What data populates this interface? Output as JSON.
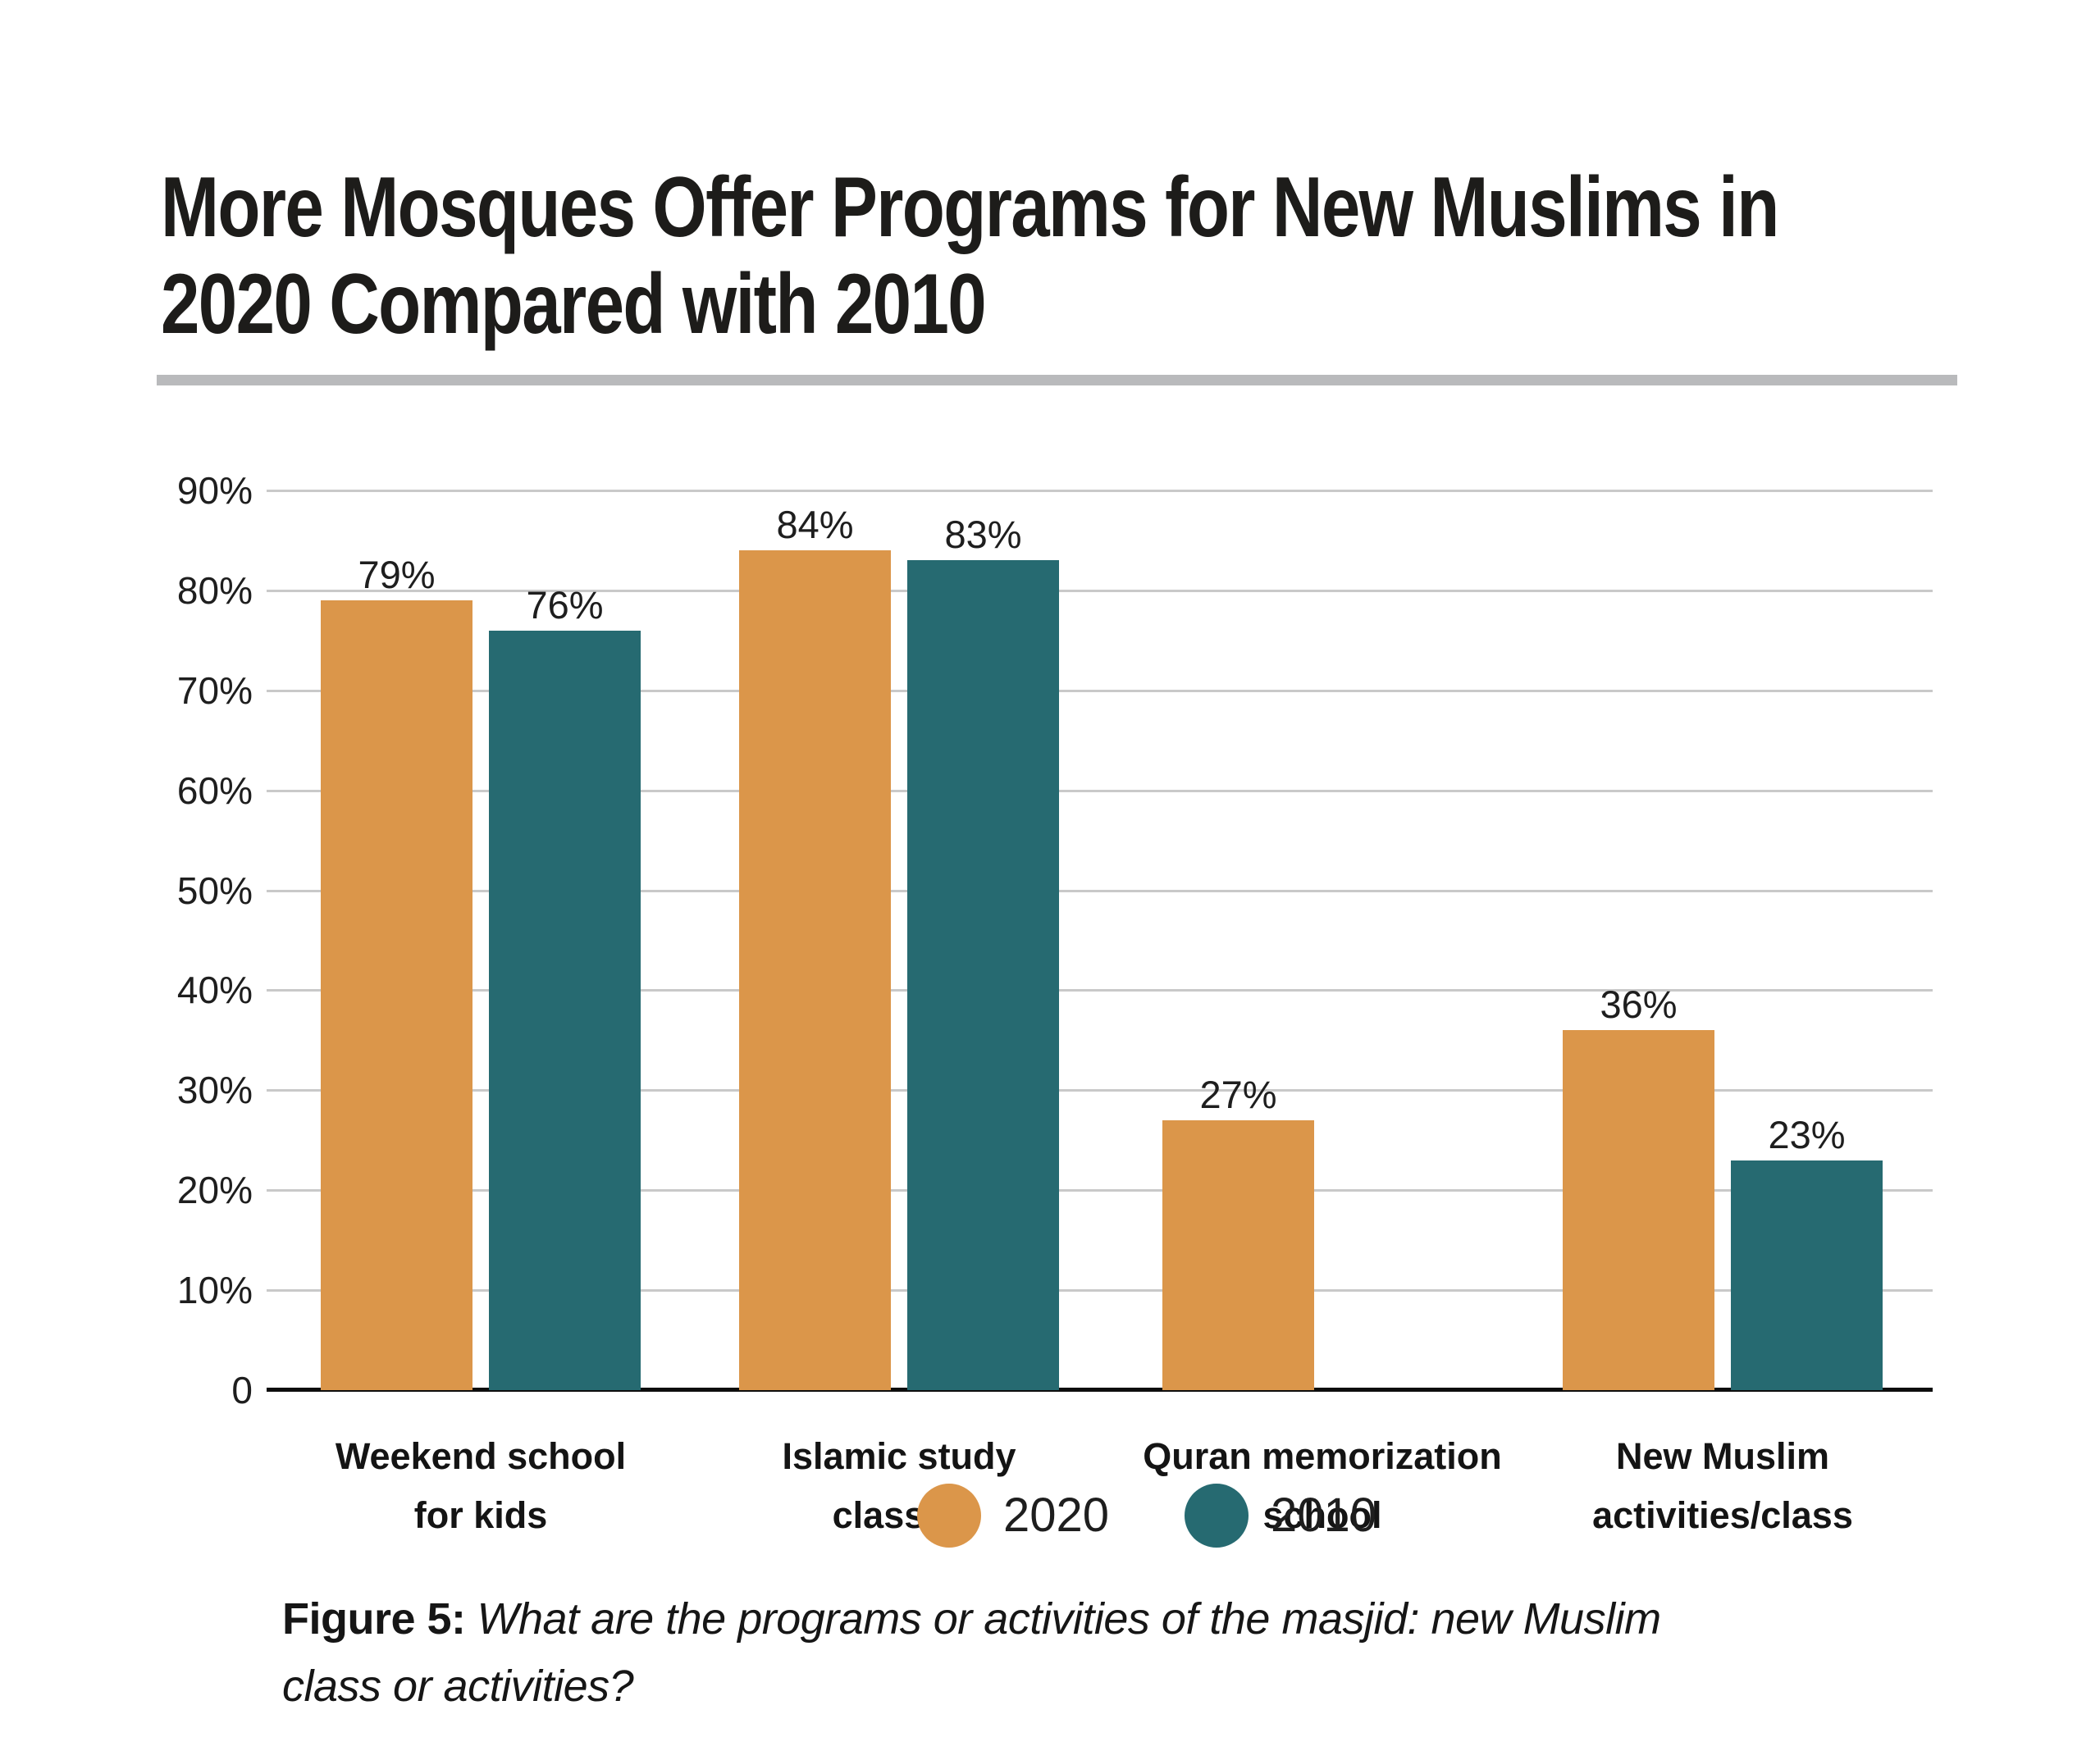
{
  "page": {
    "background": "#ffffff"
  },
  "title": {
    "full": "More Mosques Offer Programs for New Muslims in 2020 Compared with 2010",
    "lines": [
      "More Mosques Offer Programs for New Muslims in",
      "2020 Compared with 2010"
    ]
  },
  "chart_data": {
    "type": "bar",
    "title": "More Mosques Offer Programs for New Muslims in 2020 Compared with 2010",
    "categories": [
      [
        "Weekend school",
        "for kids"
      ],
      [
        "Islamic study",
        "classes"
      ],
      [
        "Quran memorization",
        "school"
      ],
      [
        "New Muslim",
        "activities/class"
      ]
    ],
    "series": [
      {
        "name": "2020",
        "color": "#DB964A",
        "values": [
          79,
          84,
          27,
          36
        ]
      },
      {
        "name": "2010",
        "color": "#266A71",
        "values": [
          76,
          83,
          null,
          23
        ]
      }
    ],
    "value_suffix": "%",
    "xlabel": "",
    "ylabel": "",
    "ylim": [
      0,
      90
    ],
    "yticks": [
      {
        "label": "90%",
        "value": 90
      },
      {
        "label": "80%",
        "value": 80
      },
      {
        "label": "70%",
        "value": 70
      },
      {
        "label": "60%",
        "value": 60
      },
      {
        "label": "50%",
        "value": 50
      },
      {
        "label": "40%",
        "value": 40
      },
      {
        "label": "30%",
        "value": 30
      },
      {
        "label": "20%",
        "value": 20
      },
      {
        "label": "10%",
        "value": 10
      },
      {
        "label": "0",
        "value": 0
      }
    ],
    "grid": true,
    "legend_position": "bottom"
  },
  "caption": {
    "prefix": "Figure 5:",
    "line1": "What are the programs or activities of the masjid: new Muslim",
    "line2": "class or activities?"
  }
}
